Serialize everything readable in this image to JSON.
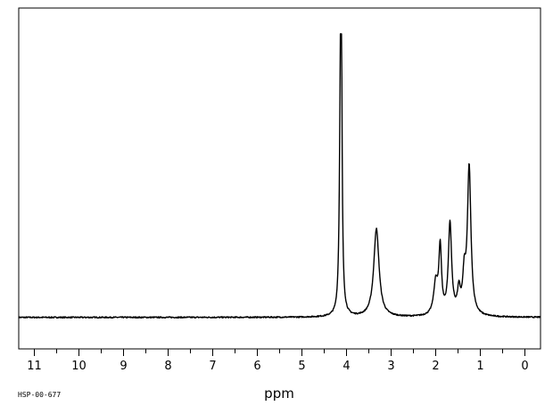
{
  "chart_data": {
    "type": "line",
    "title": "",
    "xlabel": "ppm",
    "ylabel": "",
    "xlim": [
      11.35,
      -0.35
    ],
    "x_reversed": true,
    "ylim": [
      0,
      1
    ],
    "grid": false,
    "legend": "none",
    "x_ticks": [
      11,
      10,
      9,
      8,
      7,
      6,
      5,
      4,
      3,
      2,
      1,
      0
    ],
    "x_tick_labels": [
      "11",
      "10",
      "9",
      "8",
      "7",
      "6",
      "5",
      "4",
      "3",
      "2",
      "1",
      "0"
    ],
    "baseline": 0.1,
    "peaks": [
      {
        "ppm": 4.12,
        "height": 1.0,
        "width": 0.025
      },
      {
        "ppm": 4.14,
        "height": 0.38,
        "width": 0.035
      },
      {
        "ppm": 3.33,
        "height": 0.28,
        "width": 0.09
      },
      {
        "ppm": 2.0,
        "height": 0.1,
        "width": 0.07
      },
      {
        "ppm": 1.9,
        "height": 0.21,
        "width": 0.045
      },
      {
        "ppm": 1.68,
        "height": 0.29,
        "width": 0.055
      },
      {
        "ppm": 1.48,
        "height": 0.07,
        "width": 0.05
      },
      {
        "ppm": 1.36,
        "height": 0.11,
        "width": 0.05
      },
      {
        "ppm": 1.25,
        "height": 0.47,
        "width": 0.06
      }
    ],
    "series": [
      {
        "x": [
          11.35,
          5.0,
          4.5,
          4.2,
          4.12,
          4.05,
          3.7,
          3.33,
          2.9,
          2.3,
          2.0,
          1.9,
          1.78,
          1.68,
          1.55,
          1.4,
          1.25,
          1.1,
          0.8,
          -0.35
        ],
        "y": [
          0.1,
          0.1,
          0.11,
          0.2,
          1.0,
          0.2,
          0.11,
          0.38,
          0.1,
          0.1,
          0.25,
          0.39,
          0.17,
          0.39,
          0.18,
          0.22,
          0.57,
          0.25,
          0.1,
          0.1
        ]
      }
    ]
  },
  "footer": {
    "code": "HSP-00-677"
  },
  "colors": {
    "trace": "#000000",
    "frame": "#000000",
    "background": "#ffffff"
  }
}
